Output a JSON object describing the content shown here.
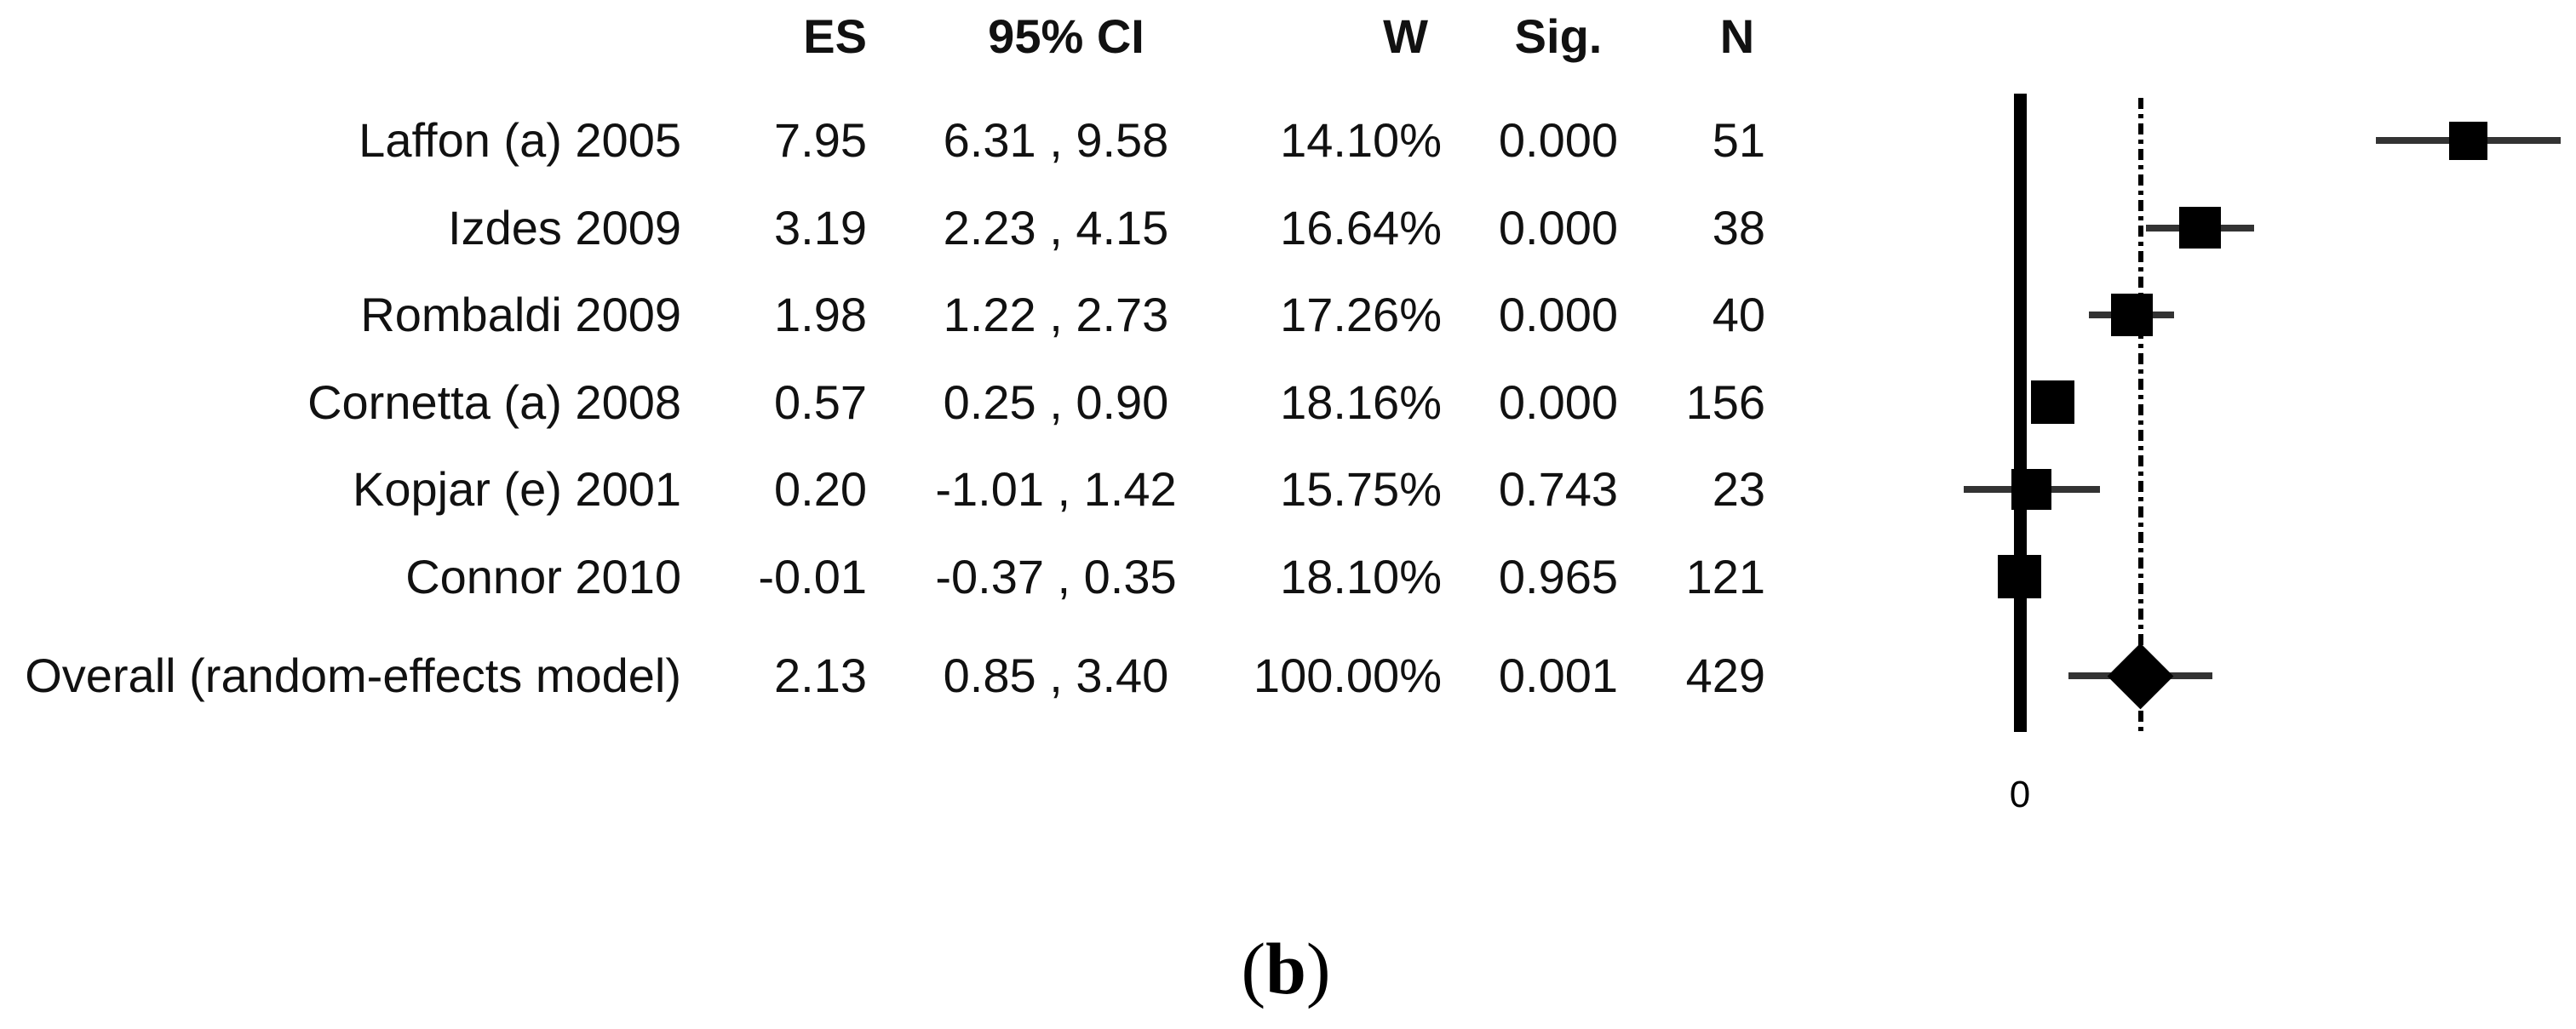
{
  "table": {
    "headers": {
      "es": "ES",
      "ci": "95% CI",
      "w": "W",
      "sig": "Sig.",
      "n": "N"
    },
    "rows": [
      {
        "study": "Laffon (a) 2005",
        "es": "7.95",
        "ci": "6.31 , 9.58",
        "w": "14.10%",
        "sig": "0.000",
        "n": "51"
      },
      {
        "study": "Izdes 2009",
        "es": "3.19",
        "ci": "2.23 , 4.15",
        "w": "16.64%",
        "sig": "0.000",
        "n": "38"
      },
      {
        "study": "Rombaldi 2009",
        "es": "1.98",
        "ci": "1.22 , 2.73",
        "w": "17.26%",
        "sig": "0.000",
        "n": "40"
      },
      {
        "study": "Cornetta (a) 2008",
        "es": "0.57",
        "ci": "0.25 , 0.90",
        "w": "18.16%",
        "sig": "0.000",
        "n": "156"
      },
      {
        "study": "Kopjar (e) 2001",
        "es": "0.20",
        "ci": "-1.01 , 1.42",
        "w": "15.75%",
        "sig": "0.743",
        "n": "23"
      },
      {
        "study": "Connor 2010",
        "es": "-0.01",
        "ci": "-0.37 , 0.35",
        "w": "18.10%",
        "sig": "0.965",
        "n": "121"
      },
      {
        "study": "Overall (random-effects model)",
        "es": "2.13",
        "ci": "0.85 , 3.40",
        "w": "100.00%",
        "sig": "0.001",
        "n": "429"
      }
    ]
  },
  "plot": {
    "zero_tick_label": "0"
  },
  "caption": {
    "open": "(",
    "letter": "b",
    "close": ")"
  },
  "colors": {
    "marker": "#000000",
    "zero_line": "#000000",
    "dashed_line": "#000000",
    "whisker": "#333333",
    "text": "#111111"
  },
  "chart_data": {
    "type": "forest",
    "title": "",
    "xlabel": "",
    "columns": [
      "ES",
      "95% CI",
      "W",
      "Sig.",
      "N"
    ],
    "zero_line": 0,
    "overall_line_at": 2.13,
    "tick_labels": [
      {
        "value": 0,
        "label": "0"
      }
    ],
    "studies": [
      {
        "name": "Laffon (a) 2005",
        "es": 7.95,
        "ci_low": 6.31,
        "ci_high": 9.58,
        "weight_pct": 14.1,
        "sig": 0.0,
        "n": 51
      },
      {
        "name": "Izdes 2009",
        "es": 3.19,
        "ci_low": 2.23,
        "ci_high": 4.15,
        "weight_pct": 16.64,
        "sig": 0.0,
        "n": 38
      },
      {
        "name": "Rombaldi 2009",
        "es": 1.98,
        "ci_low": 1.22,
        "ci_high": 2.73,
        "weight_pct": 17.26,
        "sig": 0.0,
        "n": 40
      },
      {
        "name": "Cornetta (a) 2008",
        "es": 0.57,
        "ci_low": 0.25,
        "ci_high": 0.9,
        "weight_pct": 18.16,
        "sig": 0.0,
        "n": 156
      },
      {
        "name": "Kopjar (e) 2001",
        "es": 0.2,
        "ci_low": -1.01,
        "ci_high": 1.42,
        "weight_pct": 15.75,
        "sig": 0.743,
        "n": 23
      },
      {
        "name": "Connor 2010",
        "es": -0.01,
        "ci_low": -0.37,
        "ci_high": 0.35,
        "weight_pct": 18.1,
        "sig": 0.965,
        "n": 121
      }
    ],
    "overall": {
      "name": "Overall (random-effects model)",
      "es": 2.13,
      "ci_low": 0.85,
      "ci_high": 3.4,
      "weight_pct": 100.0,
      "sig": 0.001,
      "n": 429
    }
  }
}
